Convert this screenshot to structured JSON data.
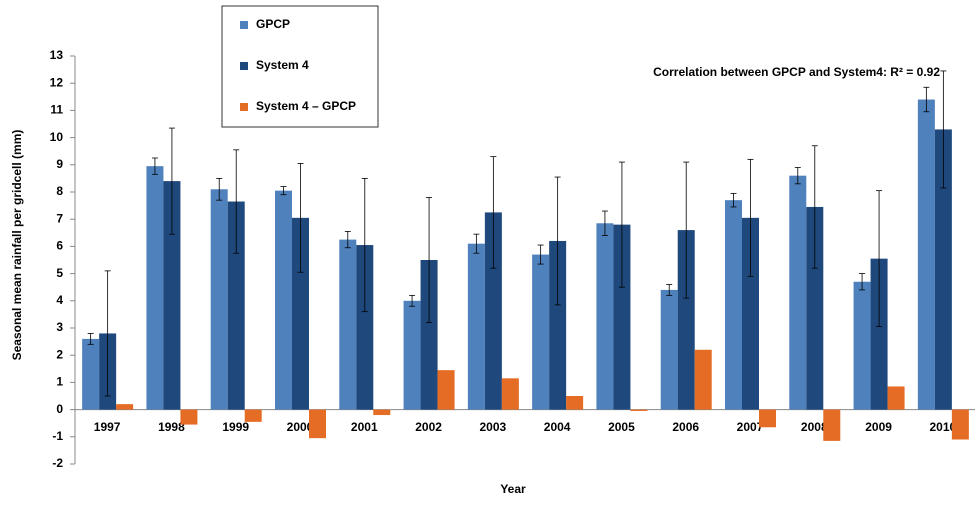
{
  "chart_data": {
    "type": "bar",
    "x_label": "Year",
    "y_label": "Seasonal mean rainfall per gridcell (mm)",
    "annotation": "Correlation between GPCP and System4:  R² = 0.92",
    "categories": [
      "1997",
      "1998",
      "1999",
      "2000",
      "2001",
      "2002",
      "2003",
      "2004",
      "2005",
      "2006",
      "2007",
      "2008",
      "2009",
      "2010"
    ],
    "series": [
      {
        "name": "GPCP",
        "color": "#4f81bd",
        "values": [
          2.6,
          8.95,
          8.1,
          8.05,
          6.25,
          4.0,
          6.1,
          5.7,
          6.85,
          4.4,
          7.7,
          8.6,
          4.7,
          11.4
        ],
        "errors": [
          0.2,
          0.3,
          0.4,
          0.15,
          0.3,
          0.2,
          0.35,
          0.35,
          0.45,
          0.2,
          0.25,
          0.3,
          0.3,
          0.45
        ]
      },
      {
        "name": "System 4",
        "color": "#1f497d",
        "values": [
          2.8,
          8.4,
          7.65,
          7.05,
          6.05,
          5.5,
          7.25,
          6.2,
          6.8,
          6.6,
          7.05,
          7.45,
          5.55,
          10.3
        ],
        "errors": [
          2.3,
          1.95,
          1.9,
          2.0,
          2.45,
          2.3,
          2.05,
          2.35,
          2.3,
          2.5,
          2.15,
          2.25,
          2.5,
          2.15
        ]
      },
      {
        "name": "System 4 – GPCP",
        "color": "#e46c24",
        "values": [
          0.2,
          -0.55,
          -0.45,
          -1.05,
          -0.2,
          1.45,
          1.15,
          0.5,
          -0.05,
          2.2,
          -0.65,
          -1.15,
          0.85,
          -1.1
        ]
      }
    ],
    "ylim": [
      -2,
      13
    ],
    "yticks": [
      -2,
      -1,
      0,
      1,
      2,
      3,
      4,
      5,
      6,
      7,
      8,
      9,
      10,
      11,
      12,
      13
    ],
    "grid": false
  }
}
